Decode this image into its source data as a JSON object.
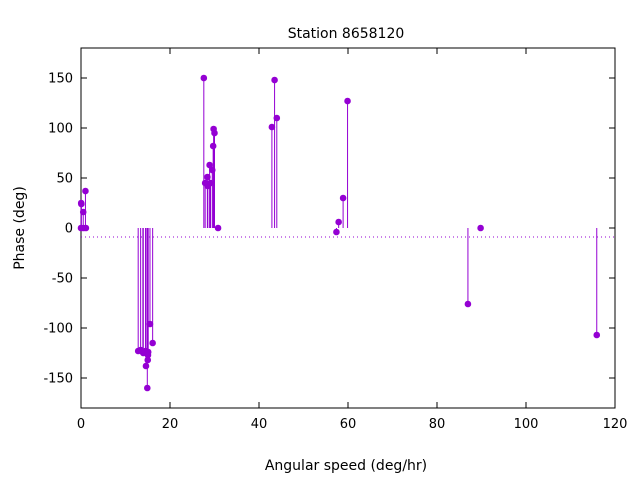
{
  "chart_data": {
    "type": "scatter",
    "style": "impulses-with-points",
    "title": "Station 8658120",
    "xlabel": "Angular speed (deg/hr)",
    "ylabel": "Phase (deg)",
    "xlim": [
      0,
      120
    ],
    "ylim": [
      -180,
      180
    ],
    "x_ticks": [
      "0",
      "20",
      "40",
      "60",
      "80",
      "100",
      "120"
    ],
    "y_ticks": [
      "-150",
      "-100",
      "-50",
      "0",
      "50",
      "100",
      "150"
    ],
    "x_tick_values": [
      0,
      20,
      40,
      60,
      80,
      100,
      120
    ],
    "y_tick_values": [
      -150,
      -100,
      -50,
      0,
      50,
      100,
      150
    ],
    "zero_line": true,
    "grid": false,
    "color": "#9400d3",
    "series": [
      {
        "points": [
          [
            0.0,
            0
          ],
          [
            0.04,
            25
          ],
          [
            0.08,
            24
          ],
          [
            0.5,
            16
          ],
          [
            0.55,
            0
          ],
          [
            1.0,
            37
          ],
          [
            1.1,
            0
          ],
          [
            12.85,
            -123
          ],
          [
            13.4,
            -122
          ],
          [
            13.9,
            -124
          ],
          [
            14.0,
            -125
          ],
          [
            14.5,
            -123
          ],
          [
            14.6,
            -138
          ],
          [
            14.9,
            -160
          ],
          [
            15.0,
            -132
          ],
          [
            15.05,
            -127
          ],
          [
            15.1,
            -124
          ],
          [
            15.5,
            -96
          ],
          [
            16.1,
            -115
          ],
          [
            27.6,
            150
          ],
          [
            27.9,
            45
          ],
          [
            28.4,
            51
          ],
          [
            28.5,
            42
          ],
          [
            28.9,
            63
          ],
          [
            29.1,
            45
          ],
          [
            29.5,
            58
          ],
          [
            29.7,
            82
          ],
          [
            29.8,
            99
          ],
          [
            30.0,
            95
          ],
          [
            30.8,
            0
          ],
          [
            42.9,
            101
          ],
          [
            43.5,
            148
          ],
          [
            44.0,
            110
          ],
          [
            57.4,
            -4
          ],
          [
            57.9,
            6
          ],
          [
            58.9,
            30
          ],
          [
            59.9,
            127
          ],
          [
            86.95,
            -76
          ],
          [
            89.8,
            0
          ],
          [
            115.9,
            -107
          ]
        ]
      }
    ]
  }
}
